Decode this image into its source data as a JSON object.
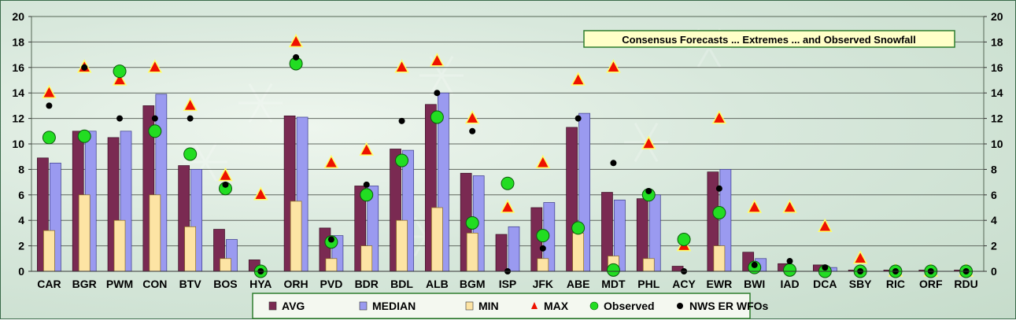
{
  "chart_data": {
    "type": "bar",
    "title": "Consensus Forecasts ... Extremes ... and Observed Snowfall",
    "categories": [
      "CAR",
      "BGR",
      "PWM",
      "CON",
      "BTV",
      "BOS",
      "HYA",
      "ORH",
      "PVD",
      "BDR",
      "BDL",
      "ALB",
      "BGM",
      "ISP",
      "JFK",
      "ABE",
      "MDT",
      "PHL",
      "ACY",
      "EWR",
      "BWI",
      "IAD",
      "DCA",
      "SBY",
      "RIC",
      "ORF",
      "RDU"
    ],
    "ylim": [
      0,
      20
    ],
    "yticks": [
      "0",
      "2",
      "4",
      "6",
      "8",
      "10",
      "12",
      "14",
      "16",
      "18",
      "20"
    ],
    "grid": true,
    "legend_position": "bottom",
    "series": [
      {
        "name": "AVG",
        "type": "bar",
        "color": "#7a2a52",
        "values": [
          8.9,
          11.0,
          10.5,
          13.0,
          8.3,
          3.3,
          0.9,
          12.2,
          3.4,
          6.7,
          9.6,
          13.1,
          7.7,
          2.9,
          5.0,
          11.3,
          6.2,
          5.7,
          0.4,
          7.8,
          1.5,
          0.6,
          0.5,
          0.1,
          0.1,
          0.1,
          0.1
        ]
      },
      {
        "name": "MEDIAN",
        "type": "bar",
        "color": "#9a9af0",
        "values": [
          8.5,
          11.0,
          11.0,
          13.9,
          8.0,
          2.5,
          0.0,
          12.1,
          2.8,
          6.7,
          9.5,
          14.0,
          7.5,
          3.5,
          5.4,
          12.4,
          5.6,
          6.0,
          0.0,
          8.0,
          1.0,
          0.0,
          0.3,
          0.0,
          0.0,
          0.0,
          0.0
        ]
      },
      {
        "name": "MIN",
        "type": "bar",
        "color": "#fde4a4",
        "values": [
          3.2,
          6.0,
          4.0,
          6.0,
          3.5,
          1.0,
          0.0,
          5.5,
          1.0,
          2.0,
          4.0,
          5.0,
          3.0,
          0.0,
          1.0,
          3.0,
          1.2,
          1.0,
          0.0,
          2.0,
          0.0,
          0.0,
          0.0,
          0.0,
          0.0,
          0.0,
          0.0
        ]
      },
      {
        "name": "MAX",
        "type": "marker",
        "color": "#ee1100",
        "values": [
          14,
          16,
          15,
          16,
          13,
          7.5,
          6,
          18,
          8.5,
          9.5,
          16,
          16.5,
          12,
          5,
          8.5,
          15,
          16,
          10,
          2,
          12,
          5,
          5,
          3.5,
          1,
          0,
          0,
          0
        ]
      },
      {
        "name": "Observed",
        "type": "marker",
        "color": "#22dd22",
        "values": [
          10.5,
          10.6,
          15.7,
          11.0,
          9.2,
          6.5,
          0.0,
          16.3,
          2.3,
          6.0,
          8.7,
          12.1,
          3.8,
          6.9,
          2.8,
          3.4,
          0.1,
          6.0,
          2.5,
          4.6,
          0.3,
          0.1,
          0.0,
          0.0,
          0.0,
          0.0,
          0.0
        ]
      },
      {
        "name": "NWS ER WFOs",
        "type": "marker",
        "color": "#000000",
        "values": [
          13,
          16,
          12,
          12,
          12,
          6.8,
          0,
          16.8,
          2.5,
          6.8,
          11.8,
          14,
          11,
          0,
          1.8,
          12,
          8.5,
          6.3,
          0,
          6.5,
          0.5,
          0.8,
          0.3,
          0,
          0,
          0,
          0
        ]
      }
    ]
  }
}
